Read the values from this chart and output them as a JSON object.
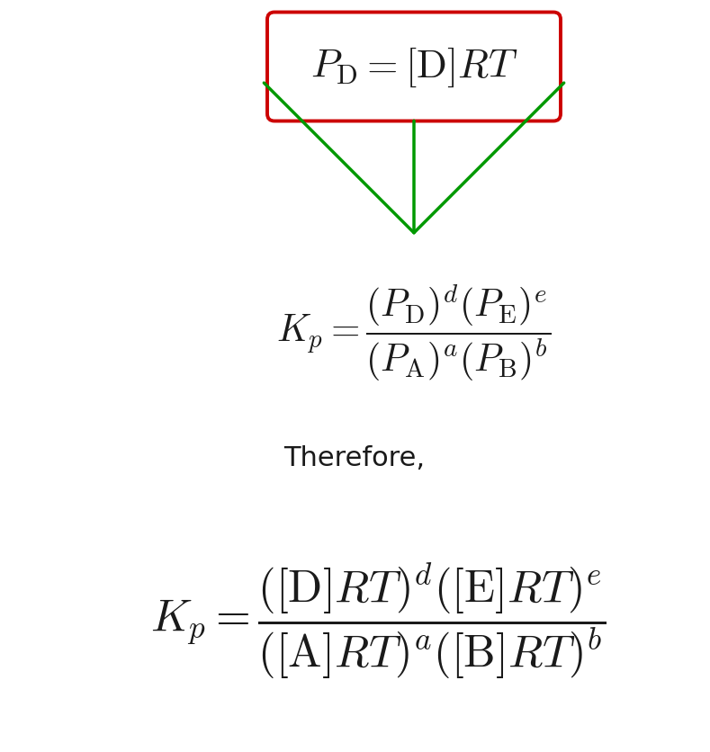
{
  "bg_color": "#ffffff",
  "box_formula": "$P_{\\mathrm{D}} = [\\mathrm{D}]RT$",
  "box_color": "#cc0000",
  "arrow_color": "#009900",
  "text_color": "#1a1a1a",
  "therefore_text": "Therefore,",
  "kp1_full": "$K_p = \\dfrac{(P_{\\mathrm{D}})^d(P_{\\mathrm{E}})^e}{(P_{\\mathrm{A}})^a(P_{\\mathrm{B}})^b}$",
  "kp2_full": "$K_p = \\dfrac{([\\mathrm{D}]RT)^d([\\mathrm{E}]RT)^e}{([\\mathrm{A}]RT)^a([\\mathrm{B}]RT)^b}$"
}
